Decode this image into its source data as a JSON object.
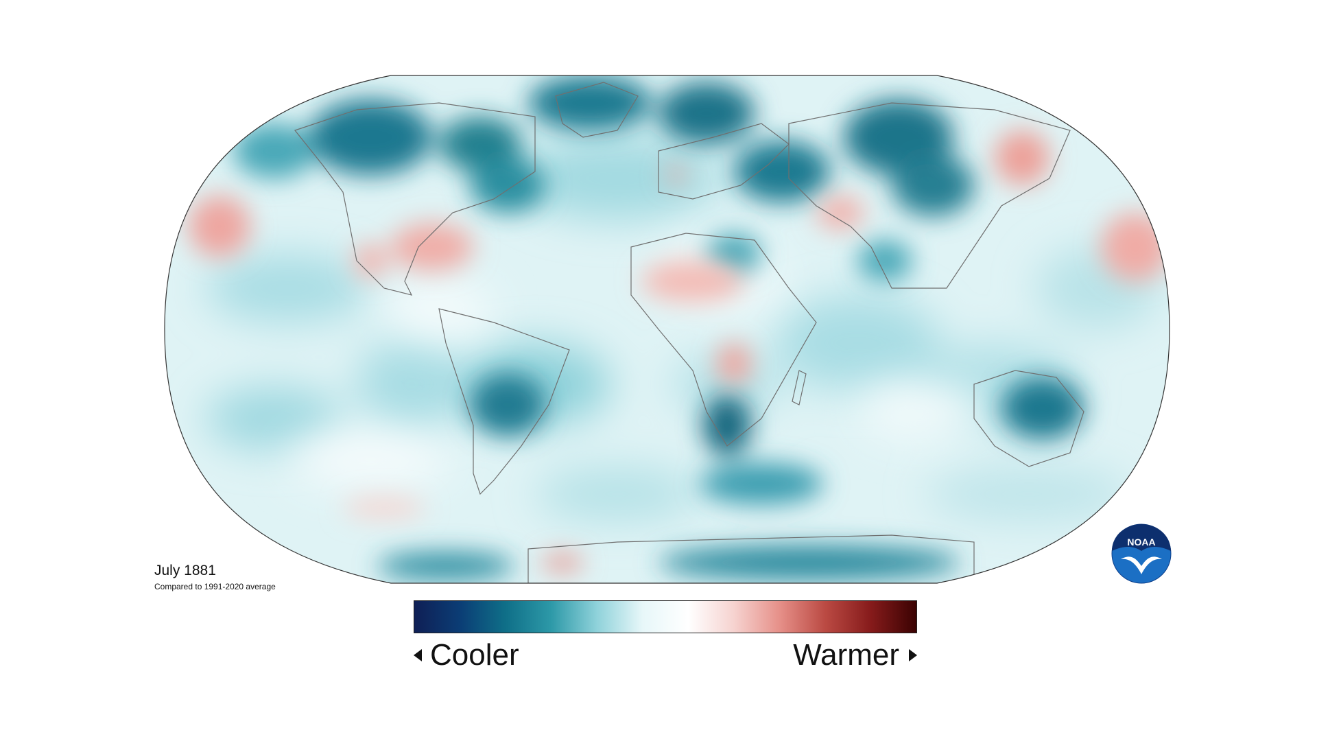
{
  "period": "July 1881",
  "baseline": "Compared to 1991-2020 average",
  "legend": {
    "cool_label": "Cooler",
    "warm_label": "Warmer",
    "gradient_stops": [
      "#0f1f55",
      "#0b3d75",
      "#0f6f88",
      "#2d99a8",
      "#8fd2da",
      "#e7f7f9",
      "#ffffff",
      "#f6d3d0",
      "#e69089",
      "#bb4a43",
      "#861b1b",
      "#3a0202"
    ]
  },
  "logo_text": "NOAA",
  "colors": {
    "ocean_base": "#dff3f5",
    "cool_strong": "#0b5e79",
    "cool_mid": "#3aa2b3",
    "cool_light": "#a5dbe2",
    "warm_light": "#f3c3bd",
    "warm_mid": "#e79890",
    "outline": "#6f6f6f"
  }
}
